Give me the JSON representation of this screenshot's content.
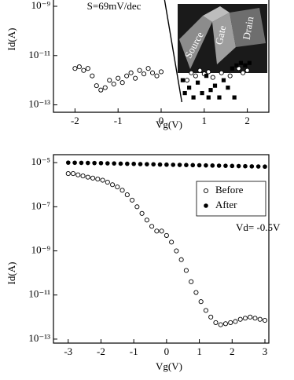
{
  "chart_data": [
    {
      "type": "scatter",
      "annotation": "S=69mV/dec",
      "xlabel": "Vg(V)",
      "ylabel": "Id(A)",
      "inset_labels": [
        "Source",
        "Gate",
        "Drain"
      ],
      "yscale": "log",
      "xlim": [
        -2.5,
        2.5
      ],
      "ylim": [
        5e-14,
        1.8e-09
      ],
      "xticks": [
        -2,
        -1,
        0,
        1,
        2
      ],
      "yticks": [
        {
          "value": 1e-09,
          "label": "10⁻⁹"
        },
        {
          "value": 1e-11,
          "label": "10⁻¹¹"
        },
        {
          "value": 1e-13,
          "label": "10⁻¹³"
        }
      ],
      "series": [
        {
          "marker": "open-circle",
          "color": "#000000",
          "x": [
            -2.0,
            -1.9,
            -1.8,
            -1.7,
            -1.6,
            -1.5,
            -1.4,
            -1.3,
            -1.2,
            -1.1,
            -1.0,
            -0.9,
            -0.8,
            -0.7,
            -0.6,
            -0.5,
            -0.4,
            -0.3,
            -0.2,
            -0.1,
            0.0,
            0.6,
            0.7,
            0.8,
            0.9,
            1.0,
            1.1,
            1.2,
            1.4,
            1.6,
            1.8,
            1.9,
            2.0
          ],
          "values": [
            3e-12,
            3.5e-12,
            2.5e-12,
            3e-12,
            1.5e-12,
            6e-13,
            4e-13,
            5e-13,
            1e-12,
            7e-13,
            1.2e-12,
            8e-13,
            1.5e-12,
            2e-12,
            1.2e-12,
            2.5e-12,
            1.8e-12,
            3e-12,
            2e-12,
            1.5e-12,
            2.2e-12,
            1e-12,
            2e-12,
            1.5e-12,
            2.5e-12,
            1.8e-12,
            2.2e-12,
            1.3e-12,
            2e-12,
            1.5e-12,
            3e-12,
            2e-12,
            2.5e-12
          ]
        },
        {
          "marker": "filled-square",
          "color": "#000000",
          "x": [
            0.5,
            0.55,
            0.65,
            0.75,
            0.85,
            0.95,
            1.05,
            1.1,
            1.15,
            1.25,
            1.35,
            1.45,
            1.55,
            1.65,
            1.7,
            1.75,
            1.85,
            1.95,
            2.05
          ],
          "values": [
            1e-12,
            3e-13,
            5e-13,
            2e-13,
            8e-13,
            3e-13,
            1.5e-12,
            2e-13,
            4e-13,
            6e-13,
            2e-13,
            1e-12,
            5e-13,
            3e-12,
            2e-13,
            4e-12,
            5e-12,
            4e-12,
            5e-12
          ]
        },
        {
          "marker": "line",
          "color": "#000000",
          "x": [
            0.08,
            0.48
          ],
          "values": [
            1.8e-09,
            1.3e-13
          ]
        }
      ]
    },
    {
      "type": "scatter",
      "annotation": "Vd= -0.5V",
      "xlabel": "Vg(V)",
      "ylabel": "Id(A)",
      "yscale": "log",
      "xlim": [
        -3.45,
        3.12
      ],
      "ylim": [
        6.6e-14,
        2.3e-05
      ],
      "xticks": [
        -3,
        -2,
        -1,
        0,
        1,
        2,
        3
      ],
      "yticks": [
        {
          "value": 1e-05,
          "label": "10⁻⁵"
        },
        {
          "value": 1e-07,
          "label": "10⁻⁷"
        },
        {
          "value": 1e-09,
          "label": "10⁻⁹"
        },
        {
          "value": 1e-11,
          "label": "10⁻¹¹"
        },
        {
          "value": 1e-13,
          "label": "10⁻¹³"
        }
      ],
      "legend": "upper right",
      "series": [
        {
          "name": "Before",
          "marker": "open-circle",
          "color": "#000000",
          "x": [
            -3.0,
            -2.85,
            -2.7,
            -2.55,
            -2.4,
            -2.25,
            -2.1,
            -1.95,
            -1.8,
            -1.65,
            -1.5,
            -1.35,
            -1.2,
            -1.05,
            -0.9,
            -0.75,
            -0.6,
            -0.45,
            -0.3,
            -0.15,
            0.0,
            0.15,
            0.3,
            0.45,
            0.6,
            0.75,
            0.9,
            1.05,
            1.2,
            1.35,
            1.5,
            1.65,
            1.8,
            1.95,
            2.1,
            2.25,
            2.4,
            2.55,
            2.7,
            2.85,
            3.0
          ],
          "values": [
            3.2e-06,
            3.2e-06,
            2.8e-06,
            2.5e-06,
            2.2e-06,
            2e-06,
            1.8e-06,
            1.6e-06,
            1.3e-06,
            1e-06,
            7.9e-07,
            5.6e-07,
            3.5e-07,
            2e-07,
            1e-07,
            5e-08,
            2.5e-08,
            1.3e-08,
            7.9e-09,
            7.9e-09,
            5e-09,
            2.5e-09,
            1e-09,
            4e-10,
            1.3e-10,
            4e-11,
            1.3e-11,
            5e-12,
            2e-12,
            1e-12,
            5.6e-13,
            4.5e-13,
            5e-13,
            5.6e-13,
            6.3e-13,
            7.9e-13,
            8.9e-13,
            1e-12,
            8.9e-13,
            7.9e-13,
            7.1e-13
          ]
        },
        {
          "name": "After",
          "marker": "filled-circle",
          "color": "#000000",
          "x": [
            -3.0,
            -2.8,
            -2.6,
            -2.4,
            -2.2,
            -2.0,
            -1.8,
            -1.6,
            -1.4,
            -1.2,
            -1.0,
            -0.8,
            -0.6,
            -0.4,
            -0.2,
            0.0,
            0.2,
            0.4,
            0.6,
            0.8,
            1.0,
            1.2,
            1.4,
            1.6,
            1.8,
            2.0,
            2.2,
            2.4,
            2.6,
            2.8,
            3.0
          ],
          "values": [
            1e-05,
            9.9e-06,
            9.8e-06,
            9.7e-06,
            9.6e-06,
            9.5e-06,
            9.3e-06,
            9.2e-06,
            9e-06,
            8.9e-06,
            8.8e-06,
            8.6e-06,
            8.5e-06,
            8.4e-06,
            8.2e-06,
            8.1e-06,
            8e-06,
            7.9e-06,
            7.8e-06,
            7.7e-06,
            7.6e-06,
            7.5e-06,
            7.4e-06,
            7.3e-06,
            7.2e-06,
            7.1e-06,
            7e-06,
            6.9e-06,
            6.8e-06,
            6.7e-06,
            6.6e-06
          ]
        }
      ]
    }
  ]
}
